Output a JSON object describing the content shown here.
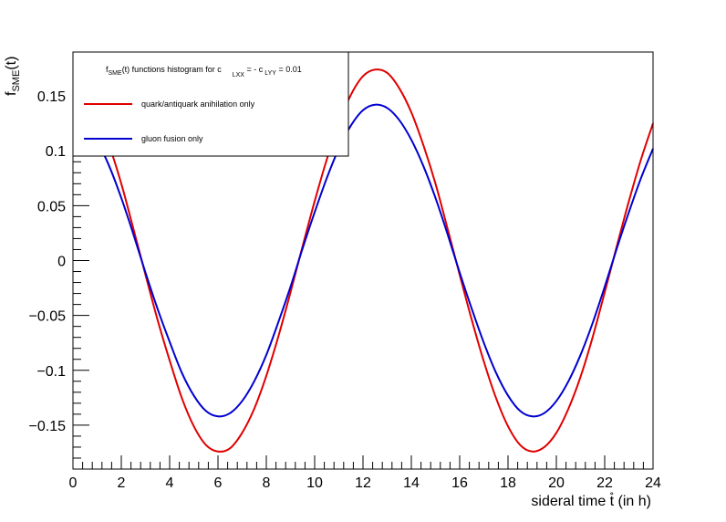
{
  "chart_data": {
    "type": "line",
    "xlabel": "sideral time  t̊ (in h)",
    "ylabel_main": "f",
    "ylabel_sub": "SME",
    "ylabel_tail": "(t)",
    "xlim": [
      0,
      24
    ],
    "ylim": [
      -0.19,
      0.19
    ],
    "x_ticks": [
      0,
      2,
      4,
      6,
      8,
      10,
      12,
      14,
      16,
      18,
      20,
      22,
      24
    ],
    "x_tick_labels": [
      "0",
      "2",
      "4",
      "6",
      "8",
      "10",
      "12",
      "14",
      "16",
      "18",
      "20",
      "22",
      "24"
    ],
    "y_ticks": [
      -0.15,
      -0.1,
      -0.05,
      0,
      0.05,
      0.1,
      0.15
    ],
    "y_tick_labels": [
      "−0.15",
      "−0.1",
      "−0.05",
      "0",
      "0.05",
      "0.1",
      "0.15"
    ],
    "grid": false,
    "legend_position": "top-left",
    "legend": {
      "header_pre": "f",
      "header_sub1": "SME",
      "header_mid": "(t) functions histogram for c",
      "header_sub2": "LXX",
      "header_mid2": " = - c",
      "header_sub3": "LYY",
      "header_end": " = 0.01"
    },
    "series": [
      {
        "name": "quark/antiquark anihilation only",
        "color": "#e00000",
        "x": [
          0,
          0.5,
          1,
          1.5,
          2,
          2.5,
          3,
          3.5,
          4,
          4.5,
          5,
          5.5,
          6,
          6.5,
          7,
          7.5,
          8,
          8.5,
          9,
          9.5,
          10,
          10.5,
          11,
          11.5,
          12,
          12.5,
          13,
          13.5,
          14,
          14.5,
          15,
          15.5,
          16,
          16.5,
          17,
          17.5,
          18,
          18.5,
          19,
          19.5,
          20,
          20.5,
          21,
          21.5,
          22,
          22.5,
          23,
          23.5,
          24
        ],
        "y": [
          0.167,
          0.155,
          0.134,
          0.105,
          0.07,
          0.029,
          -0.013,
          -0.054,
          -0.091,
          -0.125,
          -0.151,
          -0.168,
          -0.174,
          -0.171,
          -0.157,
          -0.135,
          -0.105,
          -0.069,
          -0.029,
          0.013,
          0.054,
          0.092,
          0.125,
          0.151,
          0.168,
          0.174,
          0.171,
          0.157,
          0.135,
          0.105,
          0.07,
          0.029,
          -0.013,
          -0.054,
          -0.092,
          -0.125,
          -0.151,
          -0.168,
          -0.174,
          -0.17,
          -0.157,
          -0.135,
          -0.106,
          -0.07,
          -0.029,
          0.013,
          0.054,
          0.092,
          0.125
        ]
      },
      {
        "name": "gluon fusion only",
        "color": "#0000d0",
        "x": [
          0,
          0.5,
          1,
          1.5,
          2,
          2.5,
          3,
          3.5,
          4,
          4.5,
          5,
          5.5,
          6,
          6.5,
          7,
          7.5,
          8,
          8.5,
          9,
          9.5,
          10,
          10.5,
          11,
          11.5,
          12,
          12.5,
          13,
          13.5,
          14,
          14.5,
          15,
          15.5,
          16,
          16.5,
          17,
          17.5,
          18,
          18.5,
          19,
          19.5,
          20,
          20.5,
          21,
          21.5,
          22,
          22.5,
          23,
          23.5,
          24
        ],
        "y": [
          0.136,
          0.126,
          0.109,
          0.086,
          0.057,
          0.024,
          -0.011,
          -0.044,
          -0.074,
          -0.102,
          -0.123,
          -0.137,
          -0.142,
          -0.139,
          -0.128,
          -0.11,
          -0.086,
          -0.056,
          -0.024,
          0.011,
          0.044,
          0.075,
          0.102,
          0.123,
          0.137,
          0.142,
          0.139,
          0.128,
          0.11,
          0.086,
          0.057,
          0.024,
          -0.011,
          -0.044,
          -0.075,
          -0.102,
          -0.123,
          -0.137,
          -0.142,
          -0.139,
          -0.128,
          -0.11,
          -0.086,
          -0.057,
          -0.024,
          0.011,
          0.044,
          0.075,
          0.102
        ]
      }
    ]
  }
}
